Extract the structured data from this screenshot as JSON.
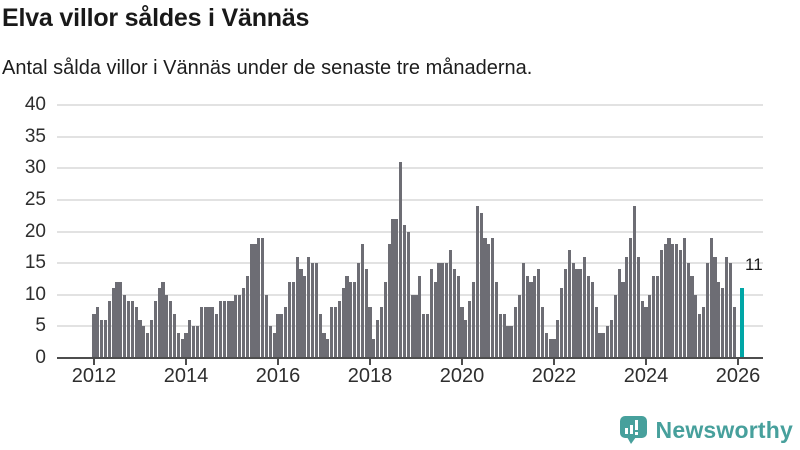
{
  "header": {
    "title": "Elva villor såldes i Vännäs",
    "subtitle": "Antal sålda villor i Vännäs under de senaste tre månaderna."
  },
  "chart_data": {
    "type": "bar",
    "title": "Elva villor såldes i Vännäs",
    "subtitle": "Antal sålda villor i Vännäs under de senaste tre månaderna.",
    "ylabel": "",
    "xlabel": "",
    "ylim": [
      0,
      40
    ],
    "y_ticks": [
      0,
      5,
      10,
      15,
      20,
      25,
      30,
      35,
      40
    ],
    "x_ticks": [
      "2012",
      "2014",
      "2016",
      "2018",
      "2020",
      "2022",
      "2024",
      "2026"
    ],
    "grid": "horizontal",
    "legend_position": "none",
    "series": [
      {
        "year": 2012,
        "values": [
          7,
          8,
          6,
          6,
          9,
          11,
          12,
          12,
          10,
          9,
          9,
          8
        ]
      },
      {
        "year": 2013,
        "values": [
          6,
          5,
          4,
          6,
          9,
          11,
          12,
          10,
          9,
          7,
          4,
          3
        ]
      },
      {
        "year": 2014,
        "values": [
          4,
          6,
          5,
          5,
          8,
          8,
          8,
          8,
          7,
          9,
          9,
          9
        ]
      },
      {
        "year": 2015,
        "values": [
          9,
          10,
          10,
          11,
          13,
          18,
          18,
          19,
          19,
          10,
          5,
          4
        ]
      },
      {
        "year": 2016,
        "values": [
          7,
          7,
          8,
          12,
          12,
          16,
          14,
          13,
          16,
          15,
          15,
          7
        ]
      },
      {
        "year": 2017,
        "values": [
          4,
          3,
          8,
          8,
          9,
          11,
          13,
          12,
          12,
          15,
          18,
          14
        ]
      },
      {
        "year": 2018,
        "values": [
          8,
          3,
          6,
          8,
          12,
          18,
          22,
          22,
          31,
          21,
          20,
          10
        ]
      },
      {
        "year": 2019,
        "values": [
          10,
          13,
          7,
          7,
          14,
          12,
          15,
          15,
          15,
          17,
          14,
          13
        ]
      },
      {
        "year": 2020,
        "values": [
          8,
          6,
          9,
          12,
          24,
          23,
          19,
          18,
          19,
          12,
          7,
          7
        ]
      },
      {
        "year": 2021,
        "values": [
          5,
          5,
          8,
          10,
          15,
          13,
          12,
          13,
          14,
          8,
          4,
          3
        ]
      },
      {
        "year": 2022,
        "values": [
          3,
          6,
          11,
          14,
          17,
          15,
          14,
          14,
          16,
          13,
          12,
          8
        ]
      },
      {
        "year": 2023,
        "values": [
          4,
          4,
          5,
          6,
          10,
          14,
          12,
          16,
          19,
          24,
          16,
          9
        ]
      },
      {
        "year": 2024,
        "values": [
          8,
          10,
          13,
          13,
          17,
          18,
          19,
          18,
          18,
          17,
          19,
          15
        ]
      },
      {
        "year": 2025,
        "values": [
          13,
          10,
          7,
          8,
          15,
          19,
          16,
          12,
          11,
          16,
          15,
          8
        ]
      }
    ],
    "highlight": {
      "label": "11",
      "value": 11
    },
    "colors": {
      "bar": "#6d6d74",
      "highlight": "#00a6a6",
      "gridline": "#e2e2e2",
      "axis": "#4d4d4d",
      "tick_text": "#2e2e2e",
      "text": "#191919"
    }
  },
  "branding": {
    "logo_text": "Newsworthy",
    "logo_color": "#47a09c"
  }
}
